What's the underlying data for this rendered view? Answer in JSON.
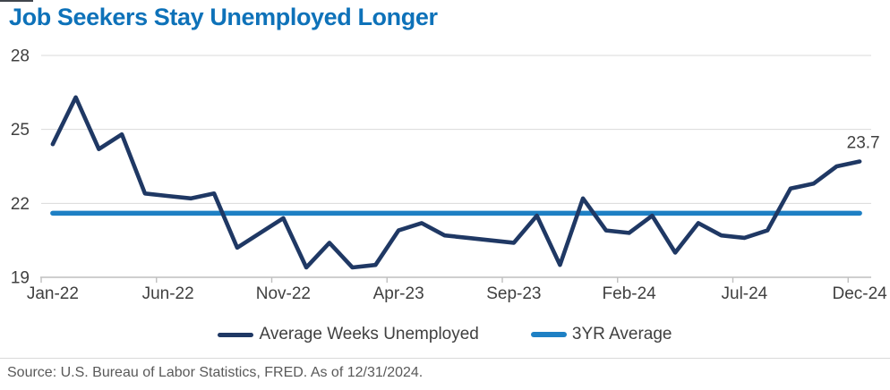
{
  "title": "Job Seekers Stay Unemployed Longer",
  "source": "Source: U.S. Bureau of Labor Statistics, FRED. As of 12/31/2024.",
  "colors": {
    "title": "#0E72B9",
    "series_line": "#1F3864",
    "average_line": "#1E80C4",
    "gridline": "#D9D9D9",
    "axis": "#BFBFBF",
    "tick_label": "#404040",
    "source_text": "#595959"
  },
  "legend": [
    {
      "label": "Average Weeks Unemployed",
      "color": "#1F3864"
    },
    {
      "label": "3YR Average",
      "color": "#1E80C4"
    }
  ],
  "chart_data": {
    "type": "line",
    "title": "Job Seekers Stay Unemployed Longer",
    "x": [
      "Jan-22",
      "Feb-22",
      "Mar-22",
      "Apr-22",
      "May-22",
      "Jun-22",
      "Jul-22",
      "Aug-22",
      "Sep-22",
      "Oct-22",
      "Nov-22",
      "Dec-22",
      "Jan-23",
      "Feb-23",
      "Mar-23",
      "Apr-23",
      "May-23",
      "Jun-23",
      "Jul-23",
      "Aug-23",
      "Sep-23",
      "Oct-23",
      "Nov-23",
      "Dec-23",
      "Jan-24",
      "Feb-24",
      "Mar-24",
      "Apr-24",
      "May-24",
      "Jun-24",
      "Jul-24",
      "Aug-24",
      "Sep-24",
      "Oct-24",
      "Nov-24",
      "Dec-24"
    ],
    "series": [
      {
        "name": "Average Weeks Unemployed",
        "color": "#1F3864",
        "values": [
          24.4,
          26.3,
          24.2,
          24.8,
          22.4,
          22.3,
          22.2,
          22.4,
          20.2,
          20.8,
          21.4,
          19.4,
          20.4,
          19.4,
          19.5,
          20.9,
          21.2,
          20.7,
          20.6,
          20.5,
          20.4,
          21.5,
          19.5,
          22.2,
          20.9,
          20.8,
          21.5,
          20.0,
          21.2,
          20.7,
          20.6,
          20.9,
          22.6,
          22.8,
          23.5,
          23.7
        ]
      },
      {
        "name": "3YR Average",
        "color": "#1E80C4",
        "constant_value": 21.6
      }
    ],
    "end_label": "23.7",
    "x_tick_labels": [
      "Jan-22",
      "Jun-22",
      "Nov-22",
      "Apr-23",
      "Sep-23",
      "Feb-24",
      "Jul-24",
      "Dec-24"
    ],
    "x_tick_step": 5,
    "y_ticks": [
      28,
      25,
      22,
      19
    ],
    "ylim": [
      19,
      28
    ],
    "grid": true,
    "legend_position": "bottom"
  }
}
